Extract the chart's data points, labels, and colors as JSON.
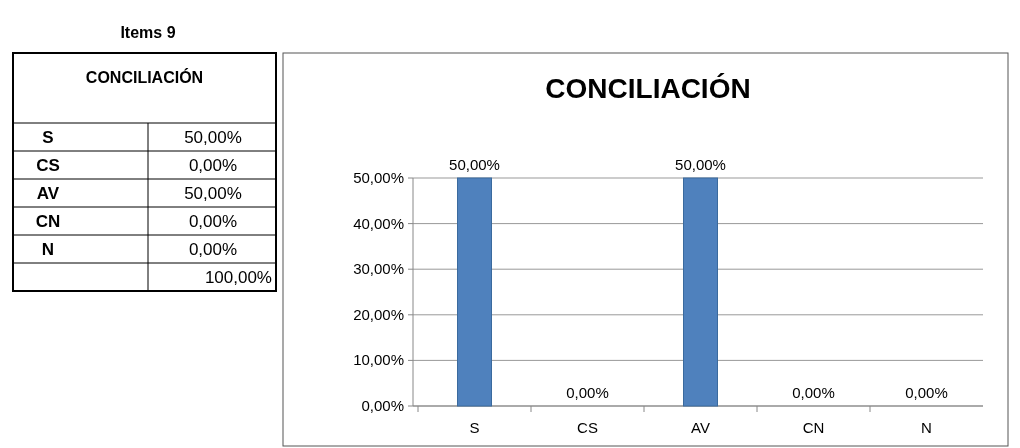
{
  "chart_data": {
    "type": "bar",
    "title": "CONCILIACIÓN",
    "categories": [
      "S",
      "CS",
      "AV",
      "CN",
      "N"
    ],
    "values": [
      50,
      0,
      50,
      0,
      0
    ],
    "value_labels": [
      "50,00%",
      "0,00%",
      "50,00%",
      "0,00%",
      "0,00%"
    ],
    "color": "#4f81bd",
    "ylim": [
      0,
      50
    ],
    "yticks": [
      {
        "value": 0,
        "label": "0,00%"
      },
      {
        "value": 10,
        "label": "10,00%"
      },
      {
        "value": 20,
        "label": "20,00%"
      },
      {
        "value": 30,
        "label": "30,00%"
      },
      {
        "value": 40,
        "label": "40,00%"
      },
      {
        "value": 50,
        "label": "50,00%"
      }
    ],
    "grid": "y",
    "annotations": [
      "Items 9",
      "CONCILIACIÓN",
      "100,00%"
    ]
  }
}
